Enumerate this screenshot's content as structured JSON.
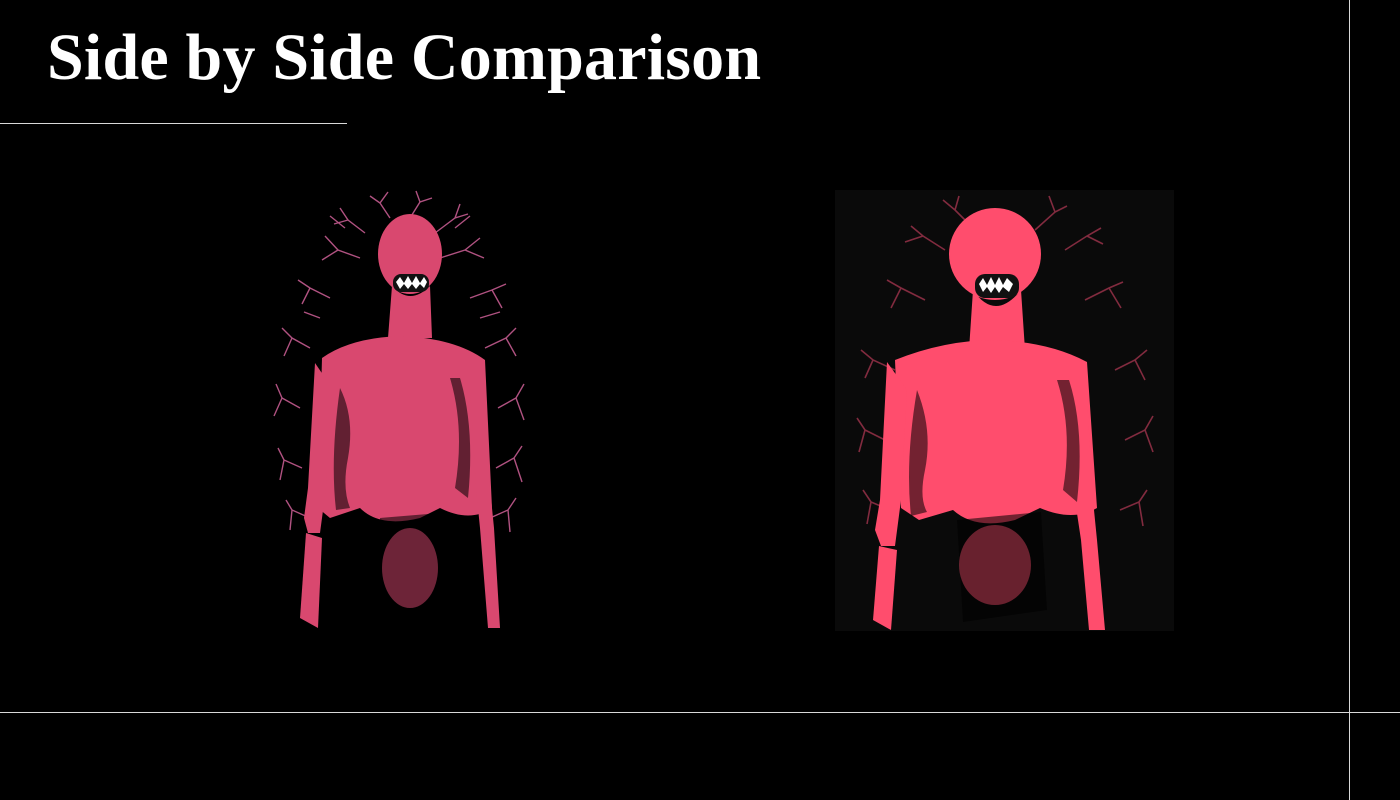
{
  "slide": {
    "title": "Side by Side Comparison"
  },
  "images": [
    {
      "name": "left-figure",
      "accent": "#d9486f",
      "vein_color": "#c45b8f"
    },
    {
      "name": "right-figure",
      "accent": "#ff4d6d",
      "vein_color": "#8f2f45"
    }
  ],
  "colors": {
    "background": "#000000",
    "rule": "#d9d9d9",
    "text": "#ffffff"
  }
}
